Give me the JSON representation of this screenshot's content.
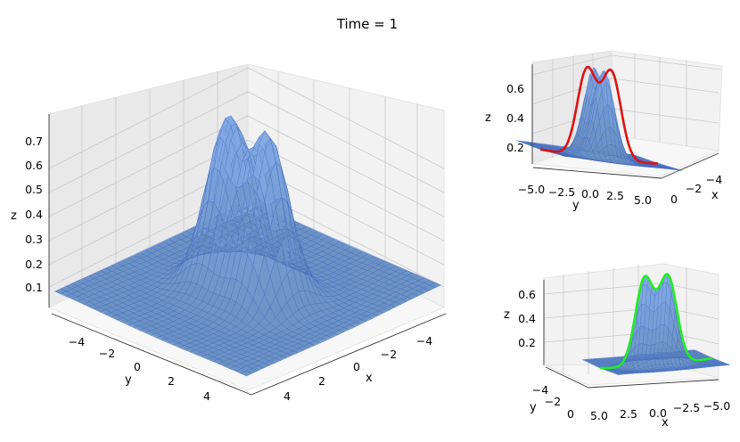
{
  "figure": {
    "title": "Time = 1"
  },
  "colors": {
    "surface": "#4a74c9",
    "slice_x": "#dd1111",
    "slice_y": "#22ee22"
  },
  "chart_data": [
    {
      "type": "surface",
      "panel": "main",
      "xlabel": "x",
      "ylabel": "y",
      "zlabel": "z",
      "xticks": [
        "−4",
        "−2",
        "0",
        "2",
        "4"
      ],
      "yticks": [
        "−4",
        "−2",
        "0",
        "2",
        "4"
      ],
      "zticks": [
        "0.1",
        "0.2",
        "0.3",
        "0.4",
        "0.5",
        "0.6",
        "0.7"
      ],
      "xlim": [
        -5,
        5
      ],
      "ylim": [
        -5,
        5
      ],
      "zlim": [
        0,
        0.75
      ],
      "peak_z": 0.72
    },
    {
      "type": "surface",
      "panel": "top-right",
      "xlabel": "x",
      "ylabel": "y",
      "zlabel": "z",
      "xticks": [
        "−4",
        "−2",
        "0"
      ],
      "yticks": [
        "−5.0",
        "−2.5",
        "0.0",
        "2.5",
        "5.0"
      ],
      "zticks": [
        "0.2",
        "0.4",
        "0.6"
      ],
      "slice_curve": "red",
      "peak_z": 0.72
    },
    {
      "type": "surface",
      "panel": "bottom-right",
      "xlabel": "x",
      "ylabel": "y",
      "zlabel": "z",
      "xticks": [
        "5.0",
        "2.5",
        "0.0",
        "−2.5",
        "−5.0"
      ],
      "yticks": [
        "−4",
        "−2",
        "0"
      ],
      "zticks": [
        "0.2",
        "0.4",
        "0.6"
      ],
      "slice_curve": "green",
      "peak_z": 0.72
    }
  ]
}
